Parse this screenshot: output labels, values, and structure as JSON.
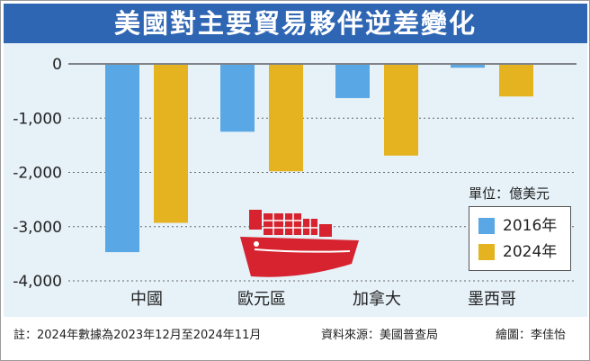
{
  "title": "美國對主要貿易夥伴逆差變化",
  "unit_label": "單位：億美元",
  "footer": {
    "note": "註：2024年數據為2023年12月至2024年11月",
    "source": "資料來源：美國普查局",
    "credit": "繪圖：李佳怡"
  },
  "colors": {
    "title_bg": "#2f66b3",
    "plot_bg": "#e6f1f8",
    "series_2016": "#5aa7e6",
    "series_2024": "#e5b320",
    "ship_red": "#d6232f"
  },
  "icons": [
    "cargo-ship-icon"
  ],
  "chart_data": {
    "type": "bar",
    "categories": [
      "中國",
      "歐元區",
      "加拿大",
      "墨西哥"
    ],
    "series": [
      {
        "name": "2016年",
        "values": [
          -3470,
          -1250,
          -630,
          -70
        ]
      },
      {
        "name": "2024年",
        "values": [
          -2930,
          -1980,
          -1690,
          -600
        ]
      }
    ],
    "yticks": [
      "0",
      "-1,000",
      "-2,000",
      "-3,000",
      "-4,000"
    ],
    "ytick_values": [
      0,
      -1000,
      -2000,
      -3000,
      -4000
    ],
    "ylim": [
      -4000,
      0
    ],
    "grid": "horizontal-dotted",
    "legend": "bottom-right"
  }
}
